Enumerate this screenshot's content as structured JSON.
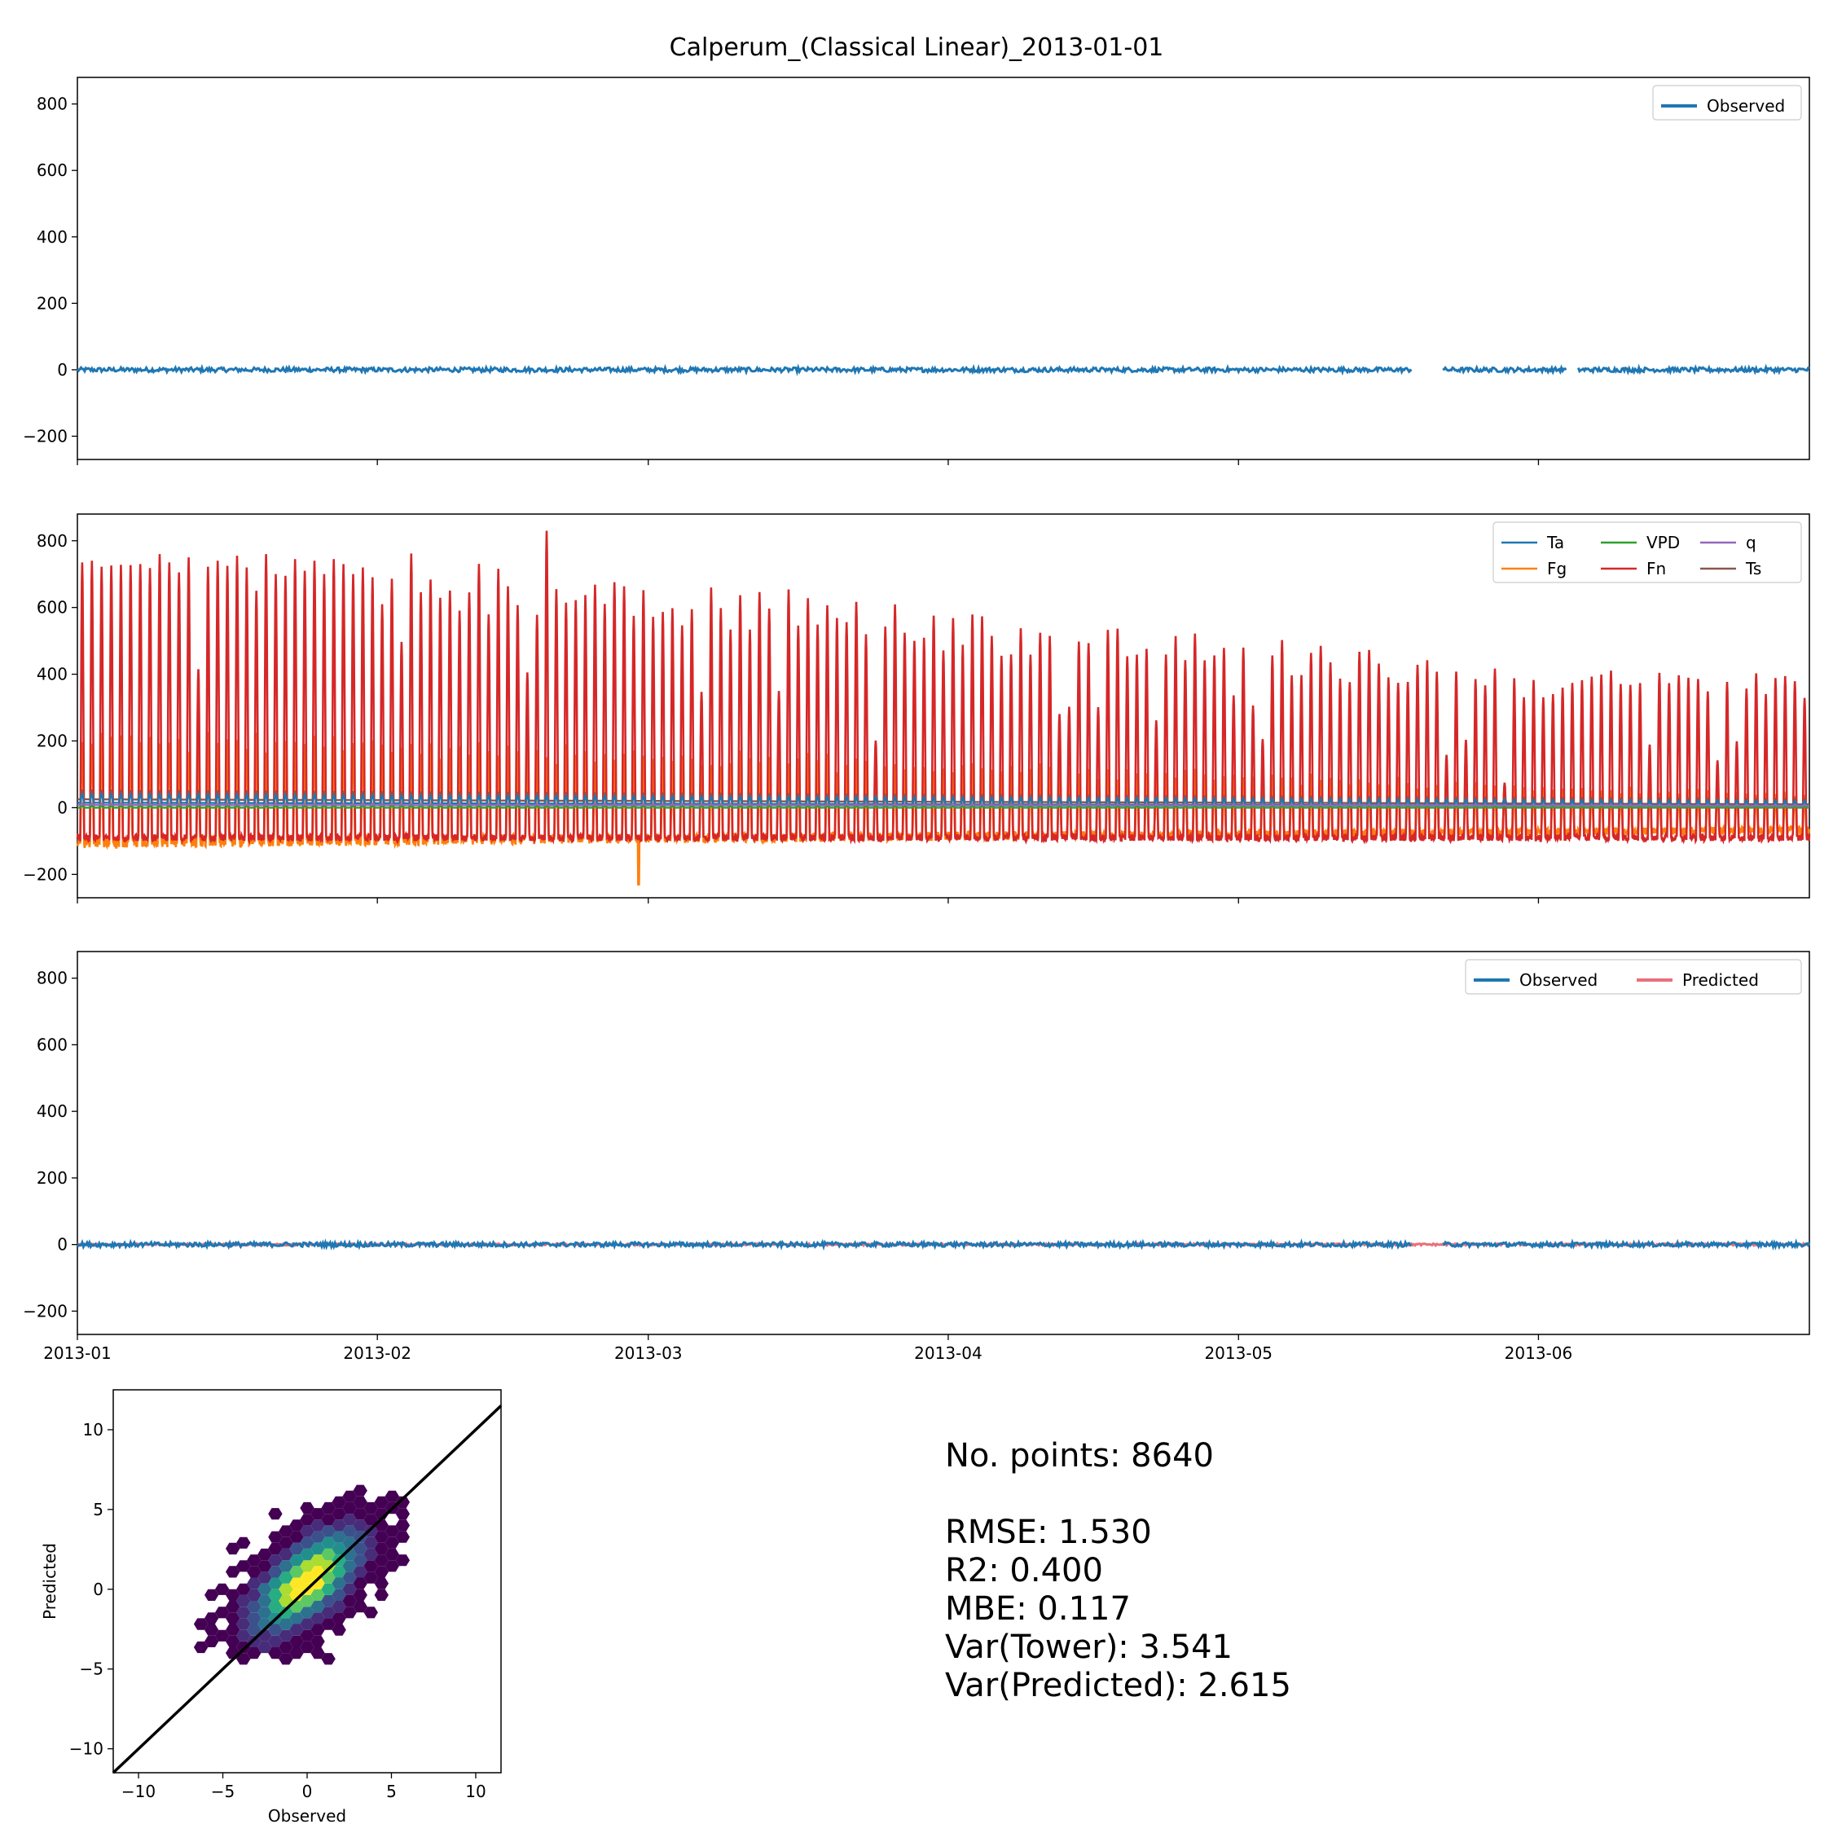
{
  "chart_data": [
    {
      "type": "line",
      "title": "Calperum_(Classical Linear)_2013-01-01",
      "xlabel": "",
      "ylabel": "",
      "xlim": [
        "2013-01-01",
        "2013-06-29"
      ],
      "ylim": [
        -270,
        880
      ],
      "yticks": [
        -200,
        0,
        200,
        400,
        600,
        800
      ],
      "ytick_labels": [
        "−200",
        "0",
        "200",
        "400",
        "600",
        "800"
      ],
      "xticks": [
        "2013-01-01",
        "2013-02-01",
        "2013-03-01",
        "2013-04-01",
        "2013-05-01",
        "2013-06-01"
      ],
      "xtick_labels": [],
      "legend": {
        "position": "upper right",
        "entries": [
          "Observed"
        ]
      },
      "series": [
        {
          "name": "Observed",
          "color": "#1f77b4",
          "style": "small noise around 0",
          "start": "2013-01-01",
          "end": "2013-06-29",
          "values_range": [
            -10,
            12
          ],
          "gaps": [
            [
              "2013-05-19",
              "2013-05-22"
            ],
            [
              "2013-06-04",
              "2013-06-05"
            ]
          ]
        }
      ]
    },
    {
      "type": "line",
      "xlabel": "",
      "ylabel": "",
      "xlim": [
        "2013-01-01",
        "2013-06-29"
      ],
      "ylim": [
        -270,
        880
      ],
      "yticks": [
        -200,
        0,
        200,
        400,
        600,
        800
      ],
      "ytick_labels": [
        "−200",
        "0",
        "200",
        "400",
        "600",
        "800"
      ],
      "xticks": [
        "2013-01-01",
        "2013-02-01",
        "2013-03-01",
        "2013-04-01",
        "2013-05-01",
        "2013-06-01"
      ],
      "xtick_labels": [],
      "legend": {
        "position": "upper right",
        "columns": 3,
        "entries": [
          "Ta",
          "Fg",
          "VPD",
          "Fn",
          "q",
          "Ts"
        ]
      },
      "series": [
        {
          "name": "Ta",
          "color": "#1f77b4",
          "style": "diurnal cycle",
          "day_max_start": 40,
          "day_max_end": 20,
          "night_min_start": 15,
          "night_min_end": 5
        },
        {
          "name": "Fg",
          "color": "#ff7f0e",
          "style": "diurnal cycle",
          "day_max_start": 230,
          "day_max_end": 40,
          "night_min_start": -110,
          "night_min_end": -70
        },
        {
          "name": "VPD",
          "color": "#2ca02c",
          "style": "diurnal cycle",
          "day_max_start": 5,
          "day_max_end": 3,
          "night_min_start": 0,
          "night_min_end": 0
        },
        {
          "name": "Fn",
          "color": "#d62728",
          "style": "diurnal cycle",
          "daily_peak_first_30_days": [
            735,
            740,
            722,
            726,
            728,
            727,
            730,
            718,
            760,
            735,
            705,
            750,
            415,
            722,
            740,
            725,
            755,
            720,
            650,
            760,
            700,
            695,
            745,
            710,
            740,
            700,
            745,
            730,
            700,
            720
          ],
          "daily_peak_trend": [
            [
              "2013-01-01",
              730
            ],
            [
              "2013-02-01",
              700
            ],
            [
              "2013-03-01",
              650
            ],
            [
              "2013-04-01",
              545
            ],
            [
              "2013-05-01",
              470
            ],
            [
              "2013-06-01",
              380
            ],
            [
              "2013-06-29",
              370
            ]
          ],
          "notable_peaks": [
            [
              "2013-02-18",
              830
            ],
            [
              "2013-05-28",
              75
            ]
          ],
          "night_min": -100
        },
        {
          "name": "q",
          "color": "#9467bd",
          "style": "diurnal cycle",
          "day_max_start": 12,
          "day_max_end": 8,
          "night_min_start": 8,
          "night_min_end": 5
        },
        {
          "name": "Ts",
          "color": "#8c564b",
          "style": "diurnal cycle",
          "day_max_start": 50,
          "day_max_end": 25,
          "night_min_start": 25,
          "night_min_end": 10
        }
      ],
      "annotations": [
        {
          "series": "Fg",
          "date": "2013-02-28",
          "value": -230
        }
      ]
    },
    {
      "type": "line",
      "xlabel": "",
      "ylabel": "",
      "xlim": [
        "2013-01-01",
        "2013-06-29"
      ],
      "ylim": [
        -270,
        880
      ],
      "yticks": [
        -200,
        0,
        200,
        400,
        600,
        800
      ],
      "ytick_labels": [
        "−200",
        "0",
        "200",
        "400",
        "600",
        "800"
      ],
      "xticks": [
        "2013-01-01",
        "2013-02-01",
        "2013-03-01",
        "2013-04-01",
        "2013-05-01",
        "2013-06-01"
      ],
      "xtick_labels": [
        "2013-01",
        "2013-02",
        "2013-03",
        "2013-04",
        "2013-05",
        "2013-06"
      ],
      "legend": {
        "position": "upper right",
        "columns": 2,
        "entries": [
          "Observed",
          "Predicted"
        ]
      },
      "series": [
        {
          "name": "Observed",
          "color": "#1f77b4",
          "style": "small noise around 0",
          "values_range": [
            -10,
            12
          ],
          "gaps": [
            [
              "2013-05-19",
              "2013-05-22"
            ]
          ]
        },
        {
          "name": "Predicted",
          "color": "#e8707a",
          "style": "small noise around 0",
          "values_range": [
            -5,
            5
          ]
        }
      ]
    },
    {
      "type": "heatmap",
      "subtype": "hexbin scatter",
      "xlabel": "Observed",
      "ylabel": "Predicted",
      "xlim": [
        -11.5,
        11.5
      ],
      "ylim": [
        -11.5,
        12.5
      ],
      "xticks": [
        -10,
        -5,
        0,
        5,
        10
      ],
      "xtick_labels": [
        "−10",
        "−5",
        "0",
        "5",
        "10"
      ],
      "yticks": [
        -10,
        -5,
        0,
        5,
        10
      ],
      "ytick_labels": [
        "−10",
        "−5",
        "0",
        "5",
        "10"
      ],
      "colormap": "viridis",
      "reference_line": {
        "slope": 1,
        "intercept": 0,
        "color": "#000000"
      },
      "cluster": {
        "center": [
          0,
          0.5
        ],
        "x_range": [
          -8.5,
          6
        ],
        "y_range": [
          -4.5,
          6.5
        ],
        "peak_density_at": [
          0,
          0.5
        ]
      }
    }
  ],
  "stats": {
    "points": "No. points: 8640",
    "rmse": "RMSE: 1.530",
    "r2": "R2: 0.400",
    "mbe": "MBE: 0.117",
    "var_tower": "Var(Tower): 3.541",
    "var_predicted": "Var(Predicted): 2.615"
  },
  "colors": {
    "observed": "#1f77b4",
    "predicted": "#e8707a",
    "fn": "#d62728",
    "fg": "#ff7f0e"
  }
}
